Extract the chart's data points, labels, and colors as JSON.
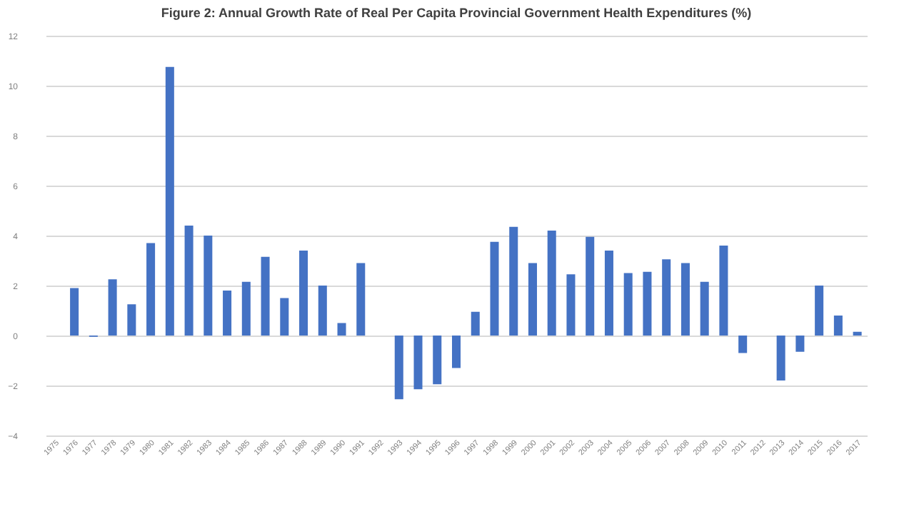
{
  "chart_data": {
    "type": "bar",
    "title": "Figure 2: Annual Growth Rate of Real Per Capita Provincial Government Health Expenditures (%)",
    "categories": [
      "1975",
      "1976",
      "1977",
      "1978",
      "1979",
      "1980",
      "1981",
      "1982",
      "1983",
      "1984",
      "1985",
      "1986",
      "1987",
      "1988",
      "1989",
      "1990",
      "1991",
      "1992",
      "1993",
      "1994",
      "1995",
      "1996",
      "1997",
      "1998",
      "1999",
      "2000",
      "2001",
      "2002",
      "2003",
      "2004",
      "2005",
      "2006",
      "2007",
      "2008",
      "2009",
      "2010",
      "2011",
      "2012",
      "2013",
      "2014",
      "2015",
      "2016",
      "2017"
    ],
    "values": [
      null,
      1.9,
      -0.05,
      2.25,
      1.25,
      3.7,
      10.75,
      4.4,
      4.0,
      1.8,
      2.15,
      3.15,
      1.5,
      3.4,
      2.0,
      0.5,
      2.9,
      null,
      -2.55,
      -2.15,
      -1.95,
      -1.3,
      0.95,
      3.75,
      4.35,
      2.9,
      4.2,
      2.45,
      3.95,
      3.4,
      2.5,
      2.55,
      3.05,
      2.9,
      2.15,
      3.6,
      -0.7,
      null,
      -1.8,
      -0.65,
      2.0,
      0.8,
      0.15
    ],
    "color": "#4472c4",
    "ylim": [
      -4,
      12
    ],
    "yticks": [
      -4,
      -2,
      0,
      2,
      4,
      6,
      8,
      10,
      12
    ],
    "grid": "y"
  }
}
